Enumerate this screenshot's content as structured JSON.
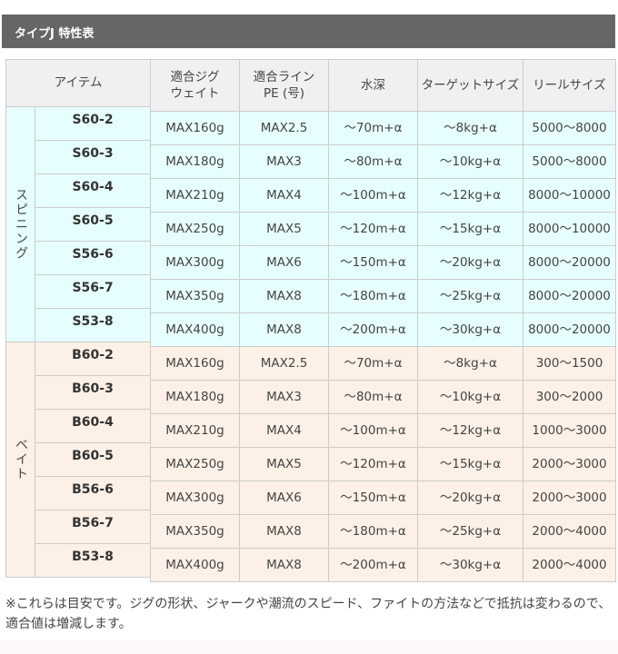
{
  "title": "タイプJ 特性表",
  "colors": {
    "spinning_bg": "#e6fffe",
    "bait_bg": "#fdf0e6",
    "header_bg": "#f0f0f3",
    "title_bg": "#666666"
  },
  "table": {
    "headers": [
      "アイテム",
      "適合ジグ\nウェイト",
      "適合ライン\nPE (号)",
      "水深",
      "ターゲットサイズ",
      "リールサイズ"
    ],
    "groups": [
      {
        "label": "スピニング",
        "rows": [
          {
            "item": "S60-2",
            "values": [
              "MAX160g",
              "MAX2.5",
              "～70m+α",
              "～8kg+α",
              "5000～8000"
            ]
          },
          {
            "item": "S60-3",
            "values": [
              "MAX180g",
              "MAX3",
              "～80m+α",
              "～10kg+α",
              "5000～8000"
            ]
          },
          {
            "item": "S60-4",
            "values": [
              "MAX210g",
              "MAX4",
              "～100m+α",
              "～12kg+α",
              "8000～10000"
            ]
          },
          {
            "item": "S60-5",
            "values": [
              "MAX250g",
              "MAX5",
              "～120m+α",
              "～15kg+α",
              "8000～10000"
            ]
          },
          {
            "item": "S56-6",
            "values": [
              "MAX300g",
              "MAX6",
              "～150m+α",
              "～20kg+α",
              "8000～20000"
            ]
          },
          {
            "item": "S56-7",
            "values": [
              "MAX350g",
              "MAX8",
              "～180m+α",
              "～25kg+α",
              "8000～20000"
            ]
          },
          {
            "item": "S53-8",
            "values": [
              "MAX400g",
              "MAX8",
              "～200m+α",
              "～30kg+α",
              "8000～20000"
            ]
          }
        ]
      },
      {
        "label": "ベイト",
        "rows": [
          {
            "item": "B60-2",
            "values": [
              "MAX160g",
              "MAX2.5",
              "～70m+α",
              "～8kg+α",
              "300～1500"
            ]
          },
          {
            "item": "B60-3",
            "values": [
              "MAX180g",
              "MAX3",
              "～80m+α",
              "～10kg+α",
              "300～2000"
            ]
          },
          {
            "item": "B60-4",
            "values": [
              "MAX210g",
              "MAX4",
              "～100m+α",
              "～12kg+α",
              "1000～3000"
            ]
          },
          {
            "item": "B60-5",
            "values": [
              "MAX250g",
              "MAX5",
              "～120m+α",
              "～15kg+α",
              "2000～3000"
            ]
          },
          {
            "item": "B56-6",
            "values": [
              "MAX300g",
              "MAX6",
              "～150m+α",
              "～20kg+α",
              "2000～3000"
            ]
          },
          {
            "item": "B56-7",
            "values": [
              "MAX350g",
              "MAX8",
              "～180m+α",
              "～25kg+α",
              "2000～4000"
            ]
          },
          {
            "item": "B53-8",
            "values": [
              "MAX400g",
              "MAX8",
              "～200m+α",
              "～30kg+α",
              "2000～4000"
            ]
          }
        ]
      }
    ]
  },
  "note": "※これらは目安です。ジグの形状、ジャークや潮流のスピード、ファイトの方法などで抵抗は変わるので、適合値は増減します。"
}
